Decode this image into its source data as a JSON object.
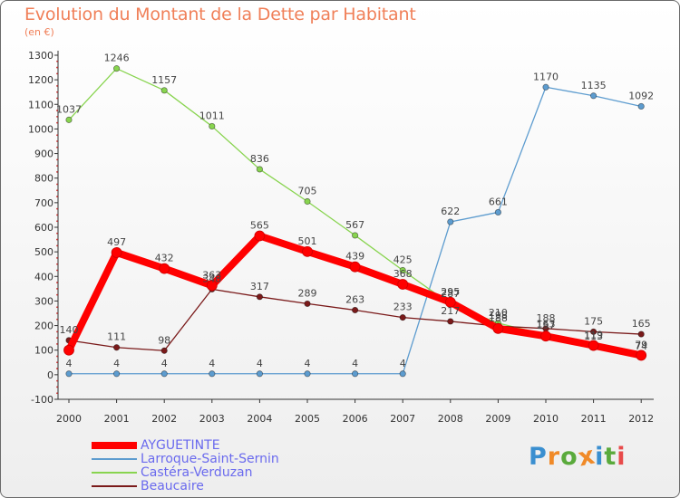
{
  "header": {
    "title": "Evolution du Montant de la Dette par Habitant",
    "subtitle": "(en €)"
  },
  "logo": {
    "text": "Proxiti",
    "letters": [
      "P",
      "r",
      "o",
      "x",
      "i",
      "t",
      "i"
    ],
    "colors": [
      "#3a8fd0",
      "#f08a28",
      "#5aaa3c",
      "#f08a28",
      "#3a8fd0",
      "#5aaa3c",
      "#e84a4a"
    ]
  },
  "chart_data": {
    "type": "line",
    "title": "Evolution du Montant de la Dette par Habitant",
    "subtitle": "(en €)",
    "x": [
      "2000",
      "2001",
      "2002",
      "2003",
      "2004",
      "2005",
      "2006",
      "2007",
      "2008",
      "2009",
      "2010",
      "2011",
      "2012"
    ],
    "ylim": [
      -100,
      1300
    ],
    "yticks": [
      -100,
      0,
      100,
      200,
      300,
      400,
      500,
      600,
      700,
      800,
      900,
      1000,
      1100,
      1200,
      1300
    ],
    "grid": false,
    "legend_position": "bottom-left",
    "series": [
      {
        "name": "AYGUETINTE",
        "color": "#ff0000",
        "values": [
          100,
          497,
          432,
          363,
          565,
          501,
          439,
          368,
          295,
          188,
          157,
          119,
          79
        ],
        "labels": [
          "",
          "497",
          "432",
          "363",
          "565",
          "501",
          "439",
          "368",
          "295",
          "188",
          "157",
          "119",
          "79"
        ]
      },
      {
        "name": "Larroque-Saint-Sernin",
        "color": "#5d9ccf",
        "values": [
          4,
          4,
          4,
          4,
          4,
          4,
          4,
          4,
          622,
          661,
          1170,
          1135,
          1092
        ],
        "labels": [
          "4",
          "4",
          "4",
          "4",
          "4",
          "4",
          "4",
          "4",
          "622",
          "661",
          "1170",
          "1135",
          "1092"
        ]
      },
      {
        "name": "Castéra-Verduzan",
        "color": "#88d44f",
        "values": [
          1037,
          1246,
          1157,
          1011,
          836,
          705,
          567,
          425,
          287,
          210,
          163,
          113,
          74
        ],
        "labels": [
          "1037",
          "1246",
          "1157",
          "1011",
          "836",
          "705",
          "567",
          "425",
          "287",
          "210",
          "163",
          "113",
          "74"
        ]
      },
      {
        "name": "Beaucaire",
        "color": "#7a1a1a",
        "values": [
          140,
          111,
          98,
          348,
          317,
          289,
          263,
          233,
          217,
          198,
          188,
          175,
          165
        ],
        "labels": [
          "140",
          "111",
          "98",
          "348",
          "317",
          "289",
          "263",
          "233",
          "217",
          "198",
          "188",
          "175",
          "165"
        ]
      }
    ]
  }
}
